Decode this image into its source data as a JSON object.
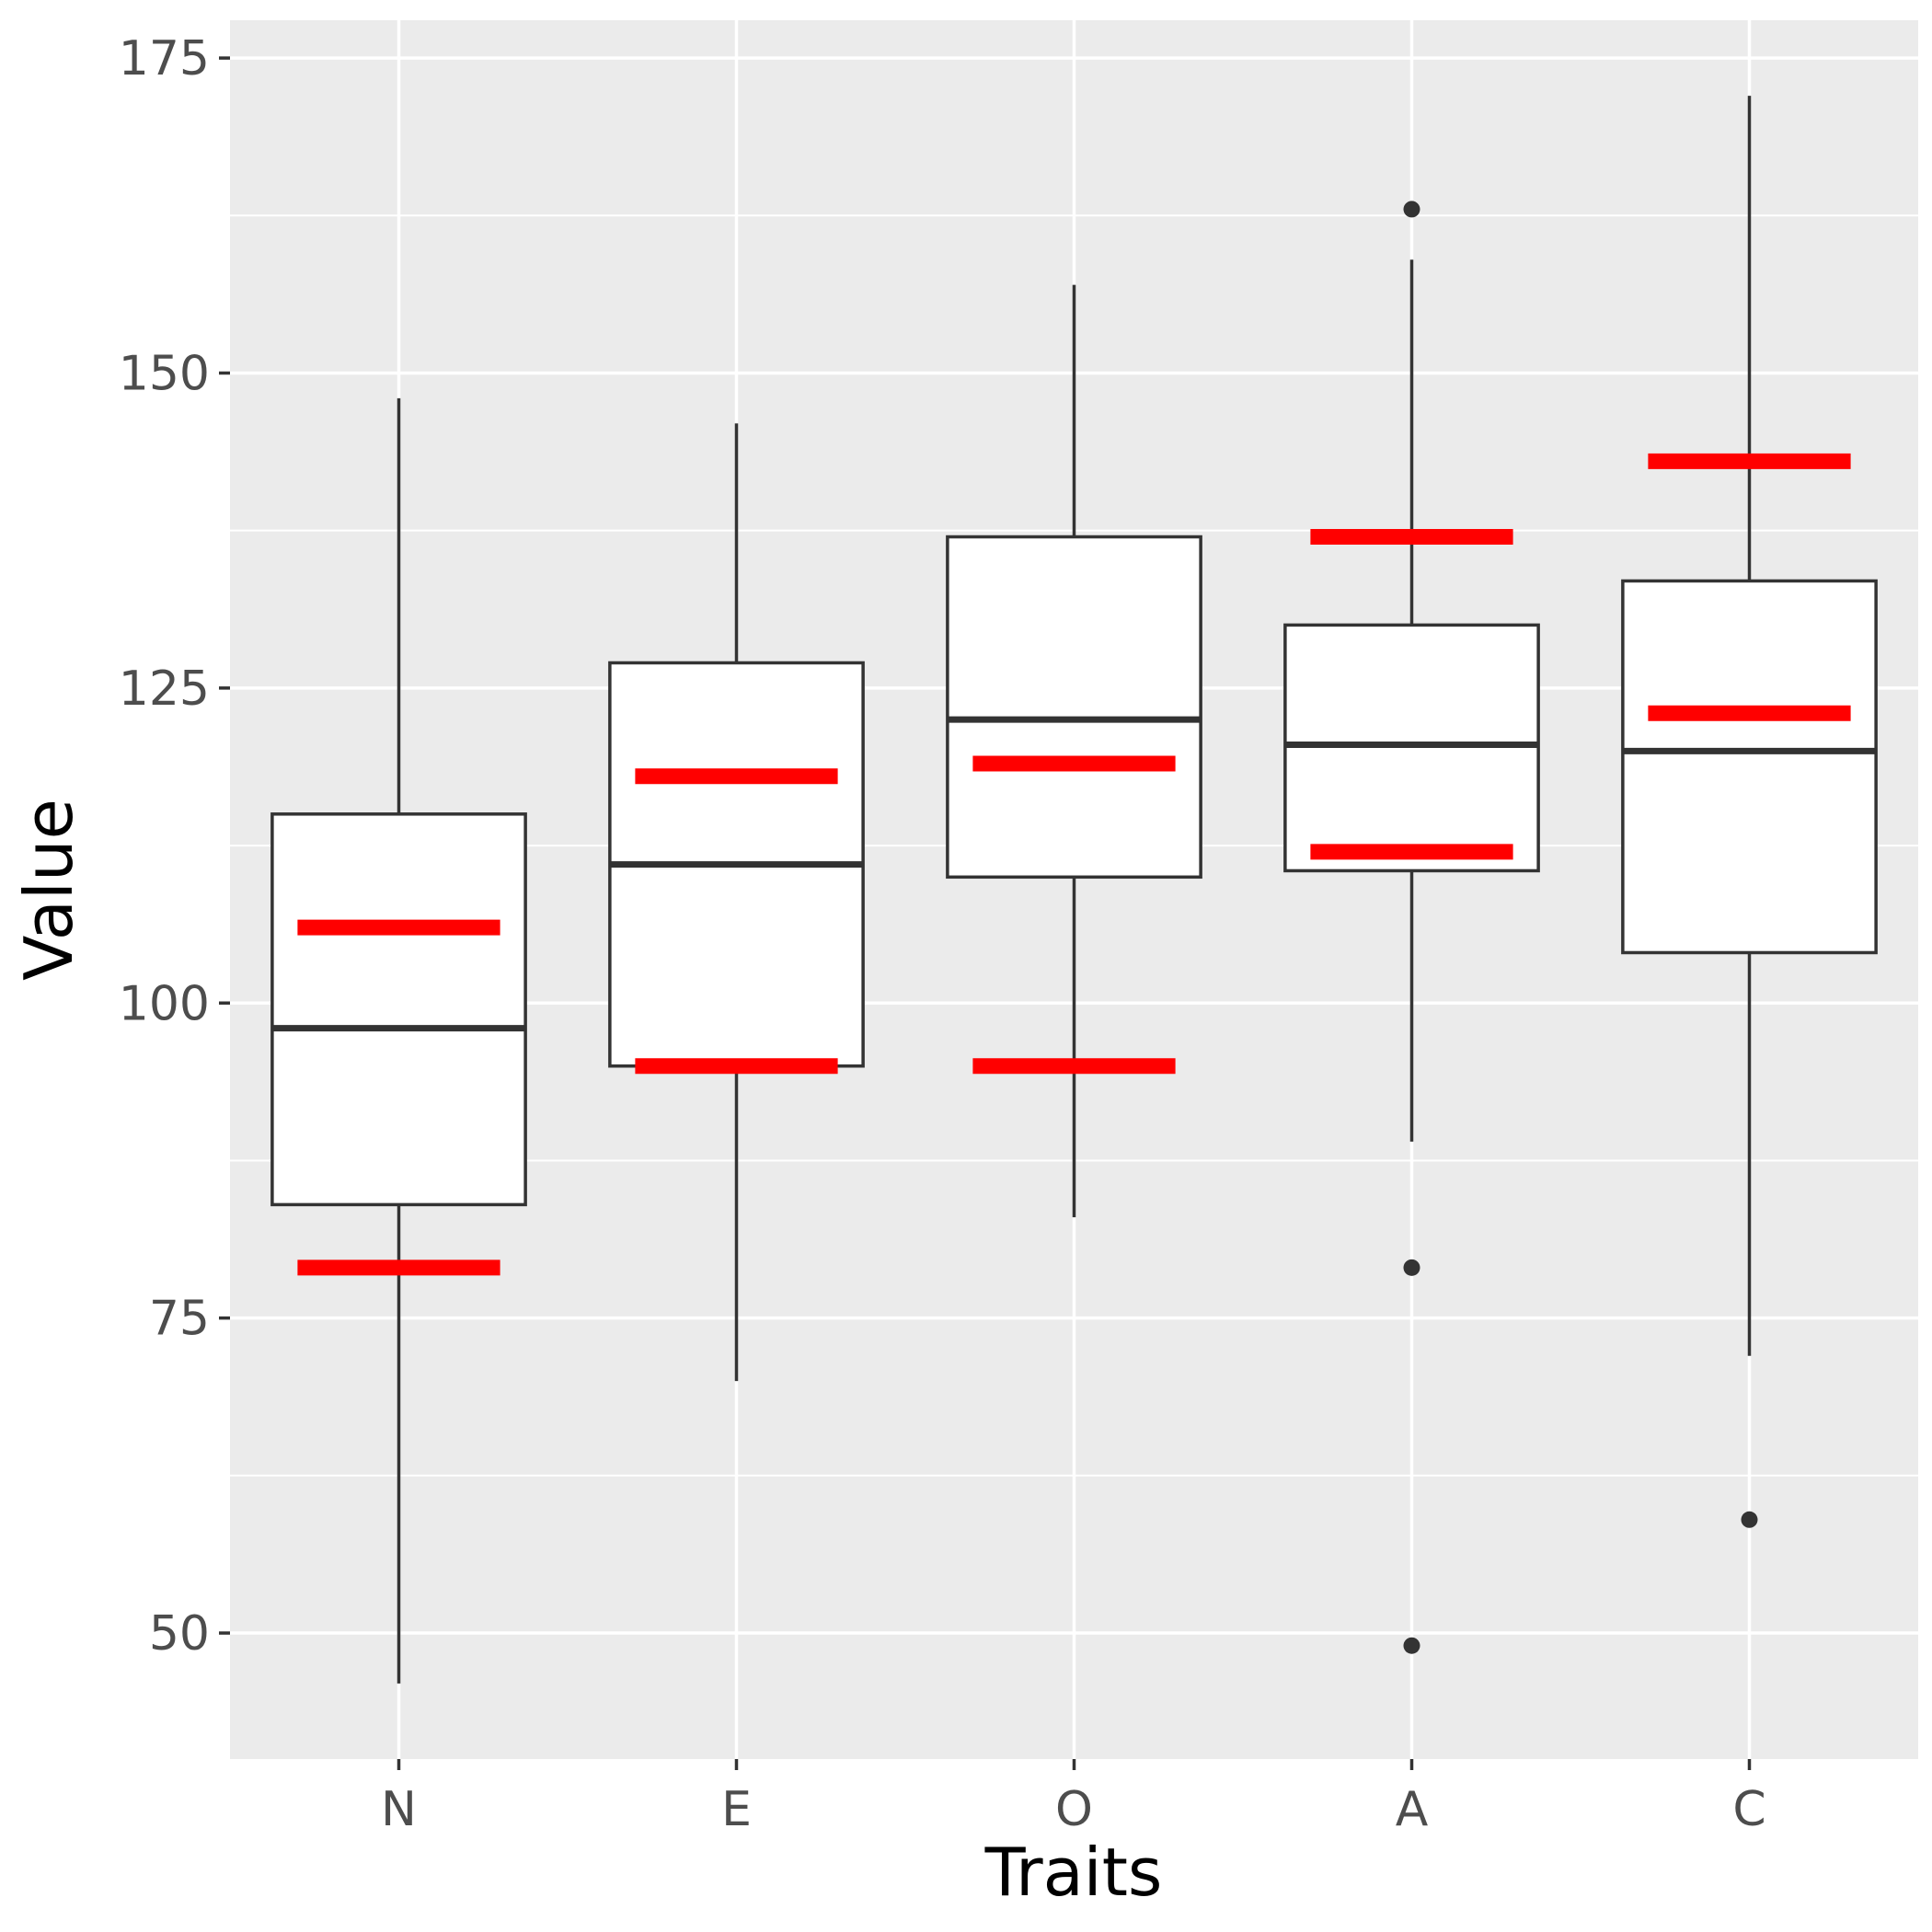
{
  "chart_data": {
    "type": "boxplot",
    "title": "",
    "xlabel": "Traits",
    "ylabel": "Value",
    "ylim": [
      40,
      178
    ],
    "y_ticks": [
      50,
      75,
      100,
      125,
      150,
      175
    ],
    "categories": [
      "N",
      "E",
      "O",
      "A",
      "C"
    ],
    "grid": true,
    "boxes": [
      {
        "category": "N",
        "whisker_low": 46,
        "q1": 84,
        "median": 98,
        "q3": 115,
        "whisker_high": 148,
        "outliers": []
      },
      {
        "category": "E",
        "whisker_low": 70,
        "q1": 95,
        "median": 111,
        "q3": 127,
        "whisker_high": 146,
        "outliers": []
      },
      {
        "category": "O",
        "whisker_low": 83,
        "q1": 110,
        "median": 122.5,
        "q3": 137,
        "whisker_high": 157,
        "outliers": []
      },
      {
        "category": "A",
        "whisker_low": 89,
        "q1": 110.5,
        "median": 120.5,
        "q3": 130,
        "whisker_high": 159,
        "outliers": [
          163,
          79,
          49
        ]
      },
      {
        "category": "C",
        "whisker_low": 72,
        "q1": 104,
        "median": 120,
        "q3": 133.5,
        "whisker_high": 172,
        "outliers": [
          59
        ]
      }
    ],
    "reference_lines": [
      {
        "category": "N",
        "values": [
          106,
          79
        ]
      },
      {
        "category": "E",
        "values": [
          118,
          95
        ]
      },
      {
        "category": "O",
        "values": [
          119,
          95
        ]
      },
      {
        "category": "A",
        "values": [
          137,
          112
        ]
      },
      {
        "category": "C",
        "values": [
          143,
          123
        ]
      }
    ],
    "colors": {
      "panel": "#ebebeb",
      "grid": "#ffffff",
      "box_fill": "#ffffff",
      "box_stroke": "#333333",
      "reference": "#ff0000"
    }
  }
}
